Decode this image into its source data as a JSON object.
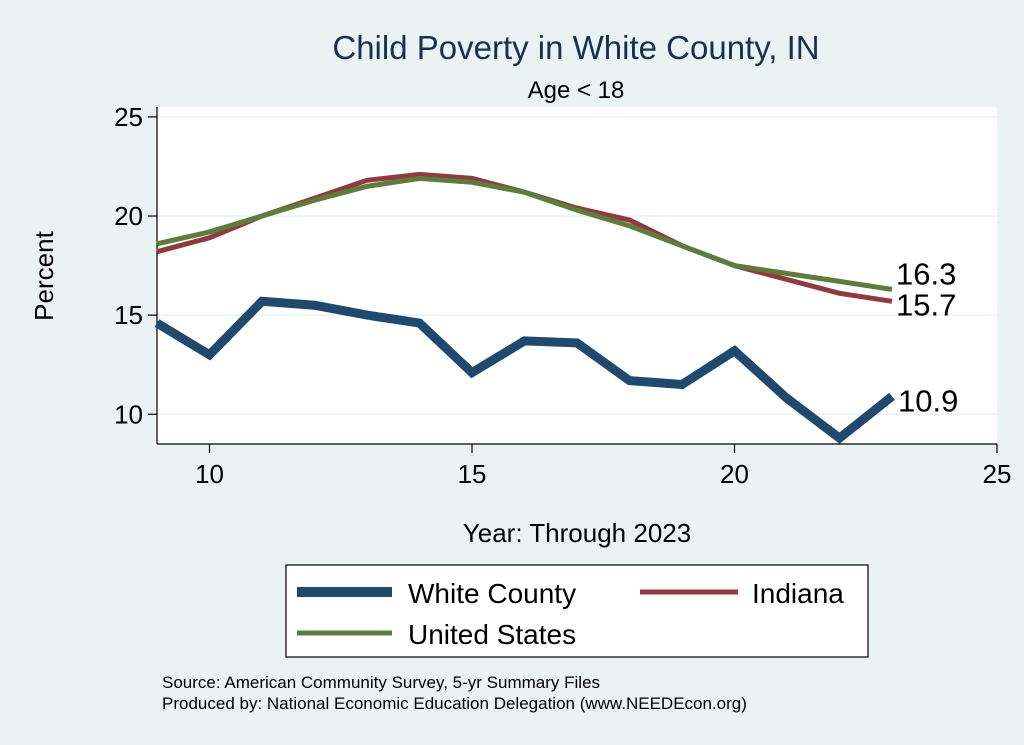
{
  "chart_data": {
    "type": "line",
    "title": "Child Poverty in White County, IN",
    "subtitle": "Age < 18",
    "xlabel": "Year: Through 2023",
    "ylabel": "Percent",
    "xlim": [
      9,
      25
    ],
    "ylim": [
      8.5,
      25.5
    ],
    "xticks": [
      10,
      15,
      20,
      25
    ],
    "yticks": [
      10,
      15,
      20,
      25
    ],
    "grid": true,
    "series": [
      {
        "name": "White County",
        "color": "#1f4a6e",
        "x": [
          9,
          10,
          11,
          12,
          13,
          14,
          15,
          16,
          17,
          18,
          19,
          20,
          21,
          22,
          23
        ],
        "values": [
          14.6,
          13.0,
          15.7,
          15.5,
          15.0,
          14.6,
          12.1,
          13.7,
          13.6,
          11.7,
          11.5,
          13.2,
          10.8,
          8.8,
          10.9
        ],
        "end_label": "10.9"
      },
      {
        "name": "Indiana",
        "color": "#8e3a3e",
        "x": [
          9,
          10,
          11,
          12,
          13,
          14,
          15,
          16,
          17,
          18,
          19,
          20,
          21,
          22,
          23
        ],
        "values": [
          18.2,
          18.9,
          20.0,
          20.9,
          21.8,
          22.1,
          21.9,
          21.2,
          20.4,
          19.8,
          18.5,
          17.5,
          16.8,
          16.1,
          15.7
        ],
        "end_label": "15.7"
      },
      {
        "name": "United States",
        "color": "#5e7d3c",
        "x": [
          9,
          10,
          11,
          12,
          13,
          14,
          15,
          16,
          17,
          18,
          19,
          20,
          21,
          22,
          23
        ],
        "values": [
          18.6,
          19.2,
          20.0,
          20.8,
          21.5,
          21.9,
          21.7,
          21.2,
          20.3,
          19.5,
          18.5,
          17.5,
          17.1,
          16.7,
          16.3
        ],
        "end_label": "16.3"
      }
    ],
    "legend": [
      "White County",
      "Indiana",
      "United States"
    ],
    "legend_position": "bottom"
  },
  "source_note": "Source: American Community Survey, 5-yr Summary Files",
  "produced_note": "Produced by: National Economic Education Delegation (www.NEEDEcon.org)"
}
